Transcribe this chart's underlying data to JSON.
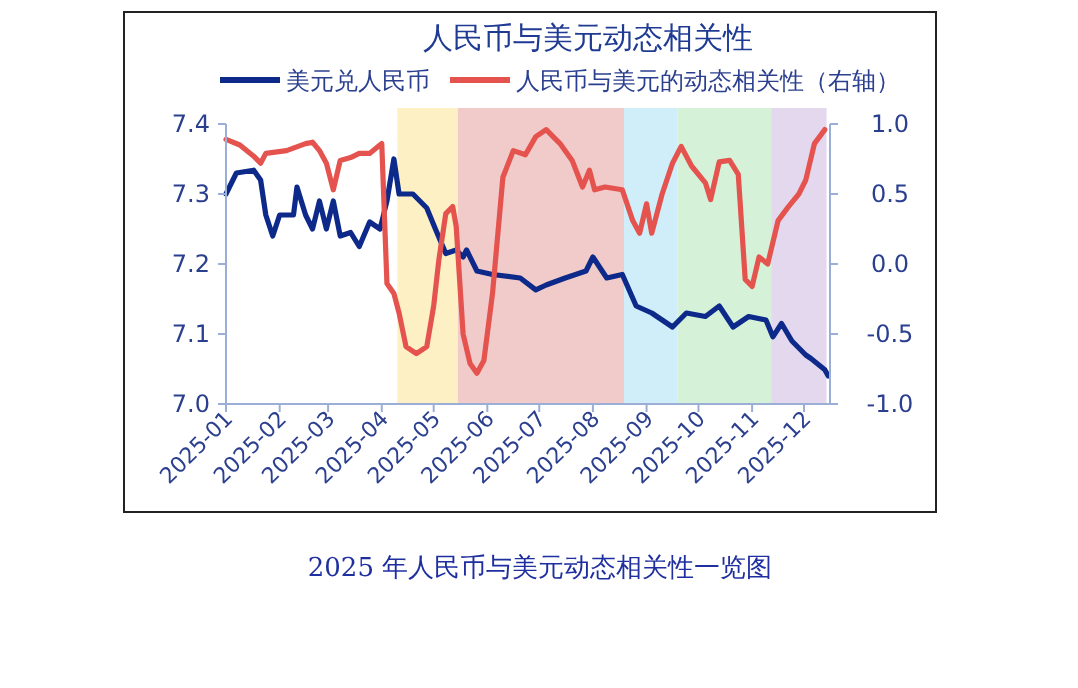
{
  "chart_data": {
    "type": "line",
    "title": "人民币与美元动态相关性",
    "legend": "top",
    "line_style": "solid",
    "marker": "none",
    "grid": false,
    "xlim": [
      "2025-01-01",
      "2025-12-16"
    ],
    "xticks": [
      {
        "value": "2025-01-01",
        "label": "2025-01"
      },
      {
        "value": "2025-02-01",
        "label": "2025-02"
      },
      {
        "value": "2025-03-01",
        "label": "2025-03"
      },
      {
        "value": "2025-04-01",
        "label": "2025-04"
      },
      {
        "value": "2025-05-01",
        "label": "2025-05"
      },
      {
        "value": "2025-06-01",
        "label": "2025-06"
      },
      {
        "value": "2025-07-01",
        "label": "2025-07"
      },
      {
        "value": "2025-08-01",
        "label": "2025-08"
      },
      {
        "value": "2025-09-01",
        "label": "2025-09"
      },
      {
        "value": "2025-10-01",
        "label": "2025-10"
      },
      {
        "value": "2025-11-01",
        "label": "2025-11"
      },
      {
        "value": "2025-12-01",
        "label": "2025-12"
      }
    ],
    "ylim": [
      7.0,
      7.4
    ],
    "yticks": [
      {
        "value": 7,
        "label": "7.0"
      },
      {
        "value": 7.1,
        "label": "7.1"
      },
      {
        "value": 7.2,
        "label": "7.2"
      },
      {
        "value": 7.3,
        "label": "7.3"
      },
      {
        "value": 7.4,
        "label": "7.4"
      }
    ],
    "y2lim": [
      -1,
      1
    ],
    "y2ticks": [
      {
        "value": -1,
        "label": "-1.0"
      },
      {
        "value": -0.5,
        "label": "-0.5"
      },
      {
        "value": 0,
        "label": "0.0"
      },
      {
        "value": 0.5,
        "label": "0.5"
      },
      {
        "value": 1,
        "label": "1.0"
      }
    ],
    "bands": [
      {
        "axis": "x",
        "from": "2025-04-10",
        "to": "2025-05-15",
        "color": "#fdf0c4"
      },
      {
        "axis": "x",
        "from": "2025-05-15",
        "to": "2025-08-19",
        "color": "#f1caca"
      },
      {
        "axis": "x",
        "from": "2025-08-19",
        "to": "2025-09-19",
        "color": "#cfeefa"
      },
      {
        "axis": "x",
        "from": "2025-09-19",
        "to": "2025-11-12",
        "color": "#d5f2d8"
      },
      {
        "axis": "x",
        "from": "2025-11-12",
        "to": "2025-12-14",
        "color": "#e4d8ef"
      }
    ],
    "series": [
      {
        "name": "美元兑人民币",
        "color": "#0d2a8a",
        "x": [
          "2025-01-01",
          "2025-01-07",
          "2025-01-17",
          "2025-01-21",
          "2025-01-24",
          "2025-01-28",
          "2025-02-01",
          "2025-02-09",
          "2025-02-11",
          "2025-02-16",
          "2025-02-20",
          "2025-02-24",
          "2025-02-28",
          "2025-03-04",
          "2025-03-08",
          "2025-03-14",
          "2025-03-19",
          "2025-03-25",
          "2025-03-31",
          "2025-04-04",
          "2025-04-08",
          "2025-04-11",
          "2025-04-19",
          "2025-04-27",
          "2025-05-02",
          "2025-05-08",
          "2025-05-14",
          "2025-05-18",
          "2025-05-20",
          "2025-05-26",
          "2025-06-04",
          "2025-06-20",
          "2025-06-29",
          "2025-07-05",
          "2025-07-16",
          "2025-07-28",
          "2025-08-01",
          "2025-08-09",
          "2025-08-18",
          "2025-08-26",
          "2025-09-04",
          "2025-09-16",
          "2025-09-24",
          "2025-10-05",
          "2025-10-13",
          "2025-10-21",
          "2025-10-30",
          "2025-11-09",
          "2025-11-13",
          "2025-11-18",
          "2025-11-24",
          "2025-12-02",
          "2025-12-05",
          "2025-12-13",
          "2025-12-15"
        ],
        "values": [
          7.3,
          7.33,
          7.334,
          7.32,
          7.27,
          7.24,
          7.27,
          7.27,
          7.31,
          7.27,
          7.25,
          7.29,
          7.25,
          7.29,
          7.24,
          7.245,
          7.225,
          7.26,
          7.25,
          7.29,
          7.35,
          7.3,
          7.3,
          7.28,
          7.25,
          7.215,
          7.22,
          7.21,
          7.22,
          7.19,
          7.185,
          7.18,
          7.163,
          7.17,
          7.18,
          7.19,
          7.21,
          7.18,
          7.185,
          7.14,
          7.13,
          7.11,
          7.13,
          7.125,
          7.14,
          7.11,
          7.125,
          7.12,
          7.096,
          7.115,
          7.09,
          7.07,
          7.065,
          7.049,
          7.04
        ]
      },
      {
        "name": "人民币与美元的动态相关性（右轴）",
        "color": "#e5534f",
        "axis": "y2",
        "x": [
          "2025-01-01",
          "2025-01-09",
          "2025-01-17",
          "2025-01-21",
          "2025-01-24",
          "2025-02-05",
          "2025-02-16",
          "2025-02-20",
          "2025-02-24",
          "2025-02-28",
          "2025-03-04",
          "2025-03-08",
          "2025-03-14",
          "2025-03-19",
          "2025-03-25",
          "2025-03-29",
          "2025-04-01",
          "2025-04-04",
          "2025-04-08",
          "2025-04-11",
          "2025-04-15",
          "2025-04-21",
          "2025-04-27",
          "2025-05-01",
          "2025-05-04",
          "2025-05-08",
          "2025-05-12",
          "2025-05-14",
          "2025-05-18",
          "2025-05-22",
          "2025-05-26",
          "2025-05-30",
          "2025-06-04",
          "2025-06-10",
          "2025-06-16",
          "2025-06-23",
          "2025-06-29",
          "2025-07-05",
          "2025-07-13",
          "2025-07-20",
          "2025-07-26",
          "2025-07-30",
          "2025-08-02",
          "2025-08-08",
          "2025-08-18",
          "2025-08-24",
          "2025-08-28",
          "2025-09-01",
          "2025-09-04",
          "2025-09-10",
          "2025-09-16",
          "2025-09-21",
          "2025-09-27",
          "2025-10-05",
          "2025-10-08",
          "2025-10-13",
          "2025-10-19",
          "2025-10-24",
          "2025-10-28",
          "2025-11-01",
          "2025-11-05",
          "2025-11-10",
          "2025-11-16",
          "2025-11-22",
          "2025-11-28",
          "2025-12-02",
          "2025-12-07",
          "2025-12-13"
        ],
        "values": [
          0.89,
          0.85,
          0.77,
          0.72,
          0.79,
          0.81,
          0.86,
          0.87,
          0.81,
          0.72,
          0.53,
          0.74,
          0.76,
          0.79,
          0.79,
          0.83,
          0.86,
          -0.14,
          -0.21,
          -0.35,
          -0.59,
          -0.64,
          -0.59,
          -0.3,
          0.03,
          0.36,
          0.41,
          0.27,
          -0.5,
          -0.71,
          -0.78,
          -0.69,
          -0.21,
          0.62,
          0.81,
          0.78,
          0.91,
          0.96,
          0.86,
          0.74,
          0.55,
          0.67,
          0.53,
          0.55,
          0.53,
          0.31,
          0.22,
          0.43,
          0.22,
          0.5,
          0.72,
          0.84,
          0.7,
          0.58,
          0.46,
          0.73,
          0.74,
          0.64,
          -0.11,
          -0.16,
          0.05,
          0.0,
          0.31,
          0.41,
          0.5,
          0.6,
          0.86,
          0.96
        ]
      }
    ],
    "annotations": [
      "2025 年人民币与美元动态相关性一览图"
    ]
  }
}
